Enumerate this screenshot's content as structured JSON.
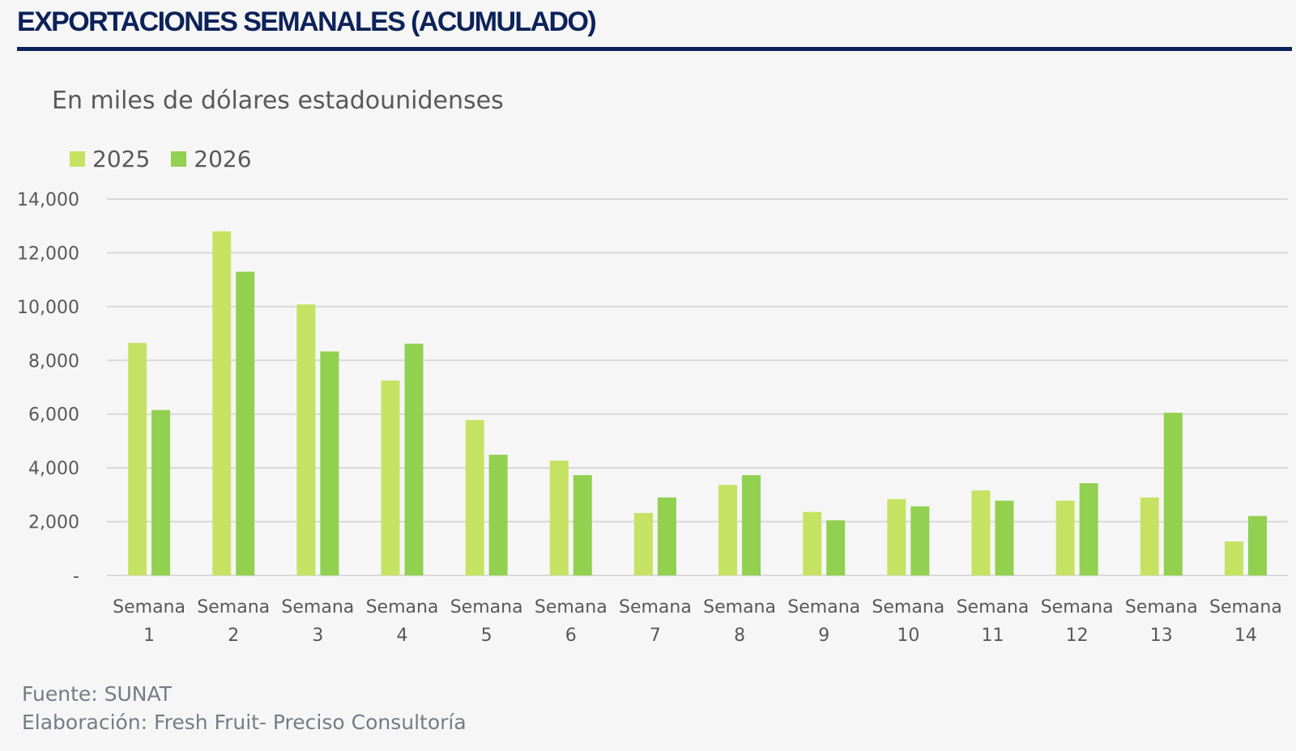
{
  "header": {
    "title": "EXPORTACIONES SEMANALES (ACUMULADO)"
  },
  "footer": {
    "source": "Fuente: SUNAT",
    "credit": "Elaboración: Fresh Fruit- Preciso Consultoría"
  },
  "colors": {
    "title": "#0d2259",
    "series_2025": "#c6e263",
    "series_2026": "#92d050",
    "grid": "#d9d9d9"
  },
  "chart_data": {
    "type": "bar",
    "title": "EXPORTACIONES SEMANALES (ACUMULADO)",
    "subtitle": "En miles de dólares estadounidenses",
    "xlabel": "",
    "ylabel": "En miles de dólares estadounidenses",
    "ylim": [
      0,
      14000
    ],
    "yticks": [
      0,
      2000,
      4000,
      6000,
      8000,
      10000,
      12000,
      14000
    ],
    "ytick_labels": [
      "-",
      "2,000",
      "4,000",
      "6,000",
      "8,000",
      "10,000",
      "12,000",
      "14,000"
    ],
    "grid": true,
    "legend_position": "top-left",
    "categories": [
      [
        "Semana",
        "1"
      ],
      [
        "Semana",
        "2"
      ],
      [
        "Semana",
        "3"
      ],
      [
        "Semana",
        "4"
      ],
      [
        "Semana",
        "5"
      ],
      [
        "Semana",
        "6"
      ],
      [
        "Semana",
        "7"
      ],
      [
        "Semana",
        "8"
      ],
      [
        "Semana",
        "9"
      ],
      [
        "Semana",
        "10"
      ],
      [
        "Semana",
        "11"
      ],
      [
        "Semana",
        "12"
      ],
      [
        "Semana",
        "13"
      ],
      [
        "Semana",
        "14"
      ]
    ],
    "series": [
      {
        "name": "2025",
        "color": "#c6e263",
        "values": [
          8650,
          12800,
          10080,
          7250,
          5780,
          4270,
          2320,
          3370,
          2360,
          2840,
          3160,
          2780,
          2900,
          1260
        ]
      },
      {
        "name": "2026",
        "color": "#92d050",
        "values": [
          6150,
          11300,
          8330,
          8620,
          4490,
          3730,
          2900,
          3730,
          2050,
          2570,
          2780,
          3430,
          6050,
          2210
        ]
      }
    ]
  }
}
